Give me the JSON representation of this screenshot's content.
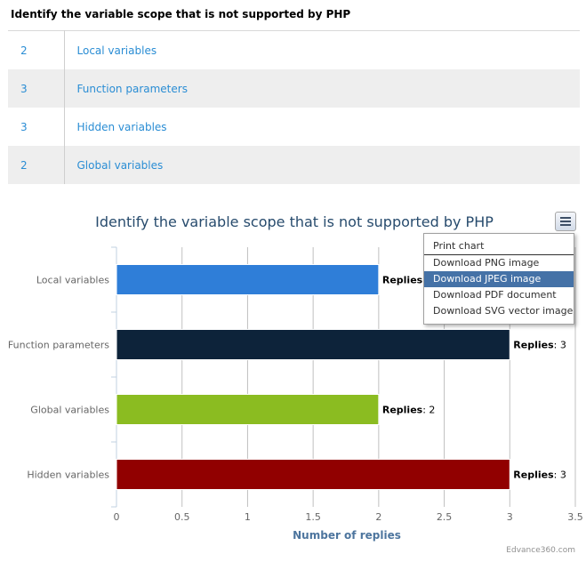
{
  "question": {
    "title": "Identify the variable scope that is not supported by PHP"
  },
  "answers": [
    {
      "count": "2",
      "label": "Local variables"
    },
    {
      "count": "3",
      "label": "Function parameters"
    },
    {
      "count": "3",
      "label": "Hidden variables"
    },
    {
      "count": "2",
      "label": "Global variables"
    }
  ],
  "chart_data": {
    "type": "bar",
    "orientation": "horizontal",
    "title": "Identify the variable scope that is not supported by PHP",
    "xlabel": "Number of replies",
    "ylabel": "",
    "categories": [
      "Local variables",
      "Function parameters",
      "Global variables",
      "Hidden variables"
    ],
    "values": [
      2,
      3,
      2,
      3
    ],
    "colors": [
      "#2f7ed8",
      "#0d233a",
      "#8bbc21",
      "#910000"
    ],
    "data_label_prefix": "Replies",
    "xlim": [
      0,
      3.5
    ],
    "xticks": [
      "0",
      "0.5",
      "1",
      "1.5",
      "2",
      "2.5",
      "3",
      "3.5"
    ],
    "grid": true,
    "legend": "none"
  },
  "export_menu": {
    "items": [
      "Print chart",
      "Download PNG image",
      "Download JPEG image",
      "Download PDF document",
      "Download SVG vector image"
    ],
    "highlighted": "Download JPEG image"
  },
  "credit": "Edvance360.com"
}
